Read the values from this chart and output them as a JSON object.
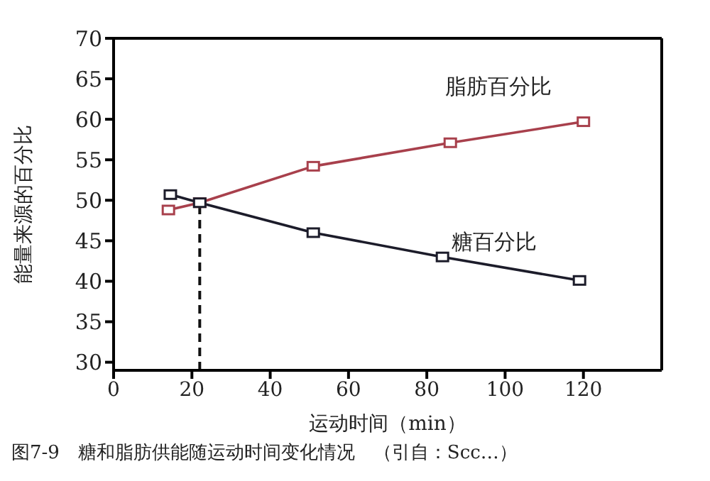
{
  "chart_data": {
    "type": "line",
    "annotations": [
      "图7-9　糖和脂肪供能随运动时间变化情况　（引自：Scc…）"
    ],
    "xlabel": "运动时间（min）",
    "ylabel": "能量来源的百分比",
    "series": [
      {
        "name": "脂肪百分比",
        "color": "#a8404c",
        "x": [
          14,
          22,
          51,
          86,
          120
        ],
        "values": [
          48.8,
          49.7,
          54.2,
          57.1,
          59.7
        ]
      },
      {
        "name": "糖百分比",
        "color": "#1c1c2a",
        "x": [
          14.5,
          22,
          51,
          84,
          119
        ],
        "values": [
          50.7,
          49.7,
          46,
          43,
          40.1
        ]
      }
    ],
    "xlim": [
      0,
      140
    ],
    "xticks": [
      0,
      20,
      40,
      60,
      80,
      100,
      120
    ],
    "ylim": [
      29,
      70
    ],
    "yticks": [
      30,
      35,
      40,
      45,
      50,
      55,
      60,
      65,
      70
    ],
    "ref_lines": [
      {
        "axis": "x",
        "value": 22,
        "line_style": "dashed",
        "color": "#111111"
      }
    ],
    "marker": "square",
    "grid": false
  }
}
